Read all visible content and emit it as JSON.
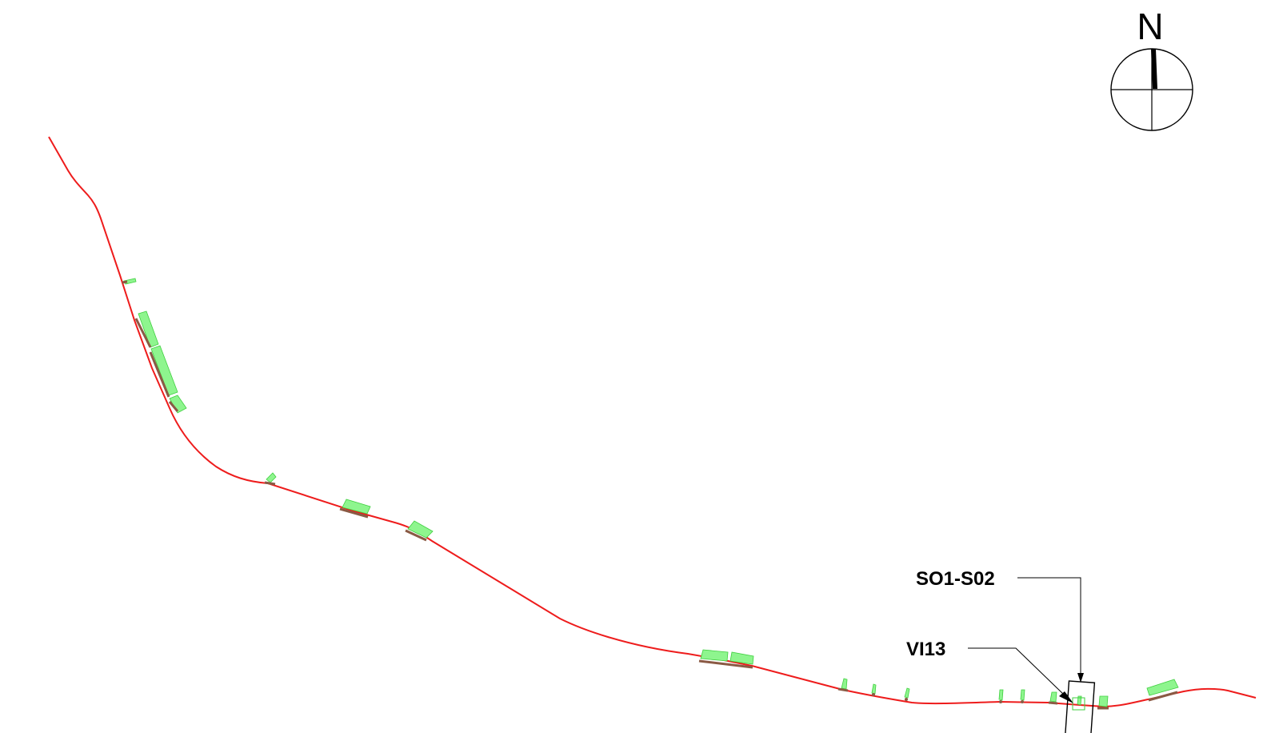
{
  "compass": {
    "north_label": "N"
  },
  "callouts": [
    {
      "id": "so1-s02",
      "label": "SO1-S02"
    },
    {
      "id": "vi13",
      "label": "VI13"
    }
  ],
  "colors": {
    "alignment": "#ee1c1c",
    "structure_fill": "#8ef58e",
    "structure_stroke": "#3fcf3f",
    "structure_base": "#8a5a44",
    "ink": "#000000"
  }
}
